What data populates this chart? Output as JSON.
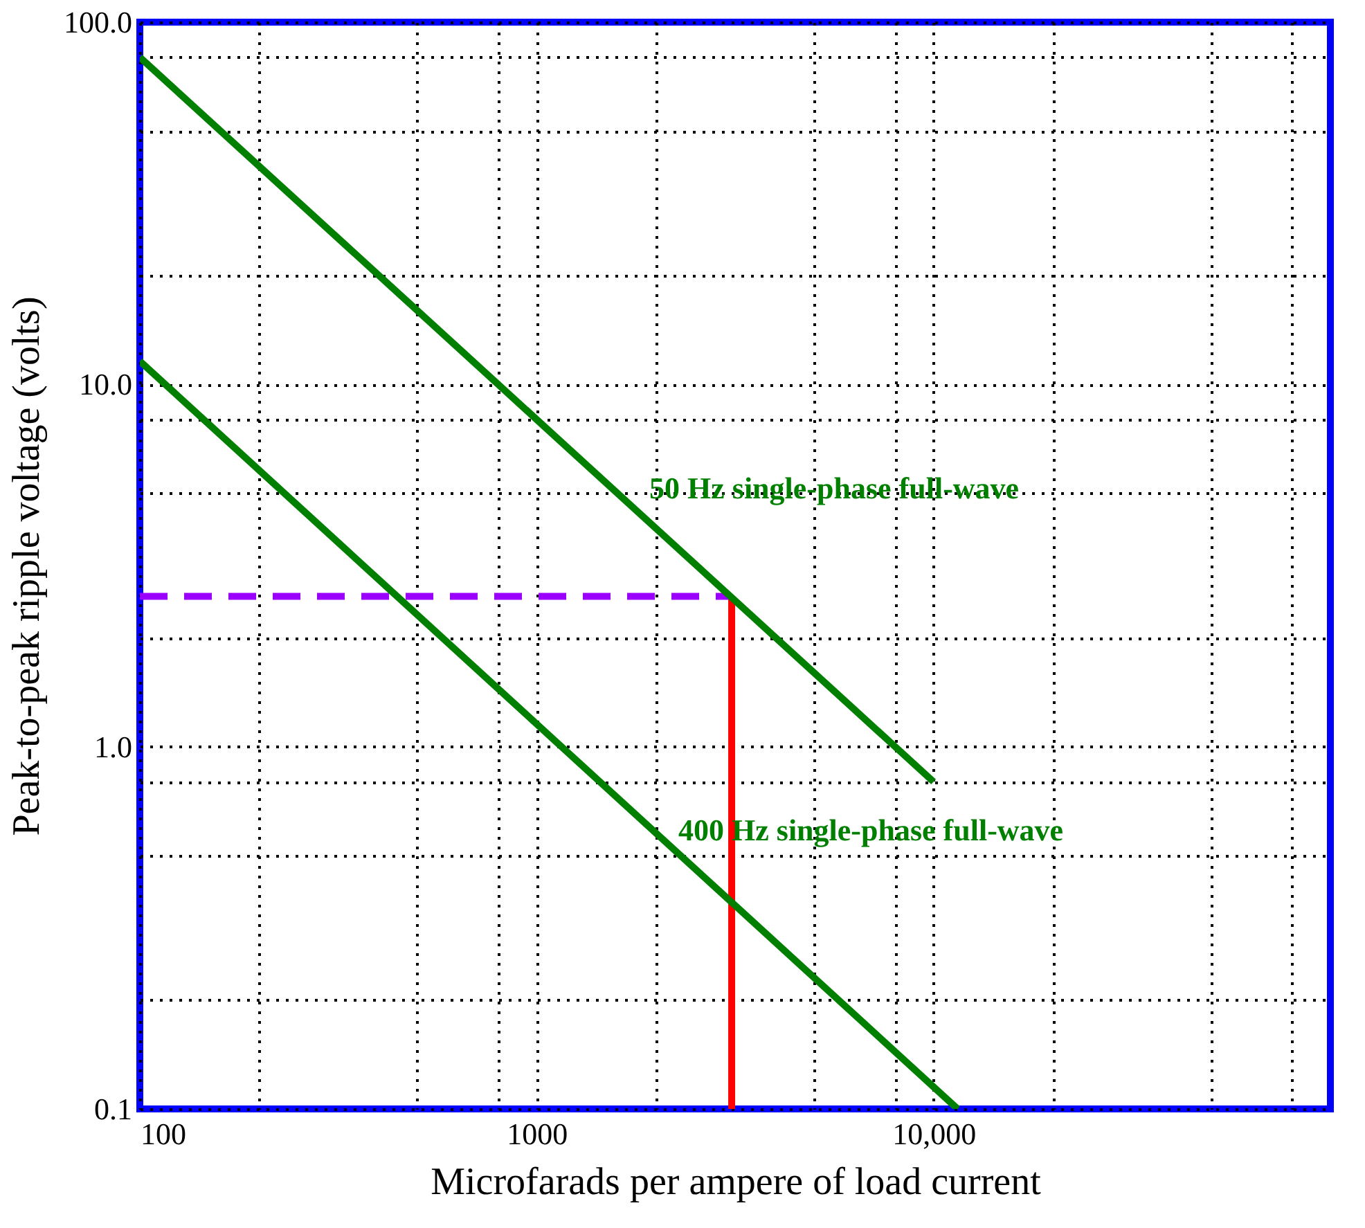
{
  "chart_data": {
    "type": "line",
    "xlabel": "Microfarads per ampere of load current",
    "ylabel": "Peak-to-peak ripple voltage  (volts)",
    "log": "xy",
    "grid": true,
    "legend": false,
    "marker": "none",
    "xlim": [
      100,
      100000
    ],
    "xticks": [
      100,
      {
        "value": 200,
        "label": null
      },
      {
        "value": 500,
        "label": null
      },
      {
        "value": 800,
        "label": null
      },
      1000,
      {
        "value": 2000,
        "label": null
      },
      {
        "value": 5000,
        "label": null
      },
      {
        "value": 8000,
        "label": null
      },
      {
        "value": 10000,
        "label": "10,000"
      },
      {
        "value": 20000,
        "label": null
      },
      {
        "value": 50000,
        "label": null
      },
      {
        "value": 80000,
        "label": null
      }
    ],
    "ylim": [
      0.1,
      100
    ],
    "yticks": [
      0.1,
      {
        "value": 0.2,
        "label": null
      },
      {
        "value": 0.5,
        "label": null
      },
      {
        "value": 0.8,
        "label": null
      },
      {
        "value": 1,
        "label": "1.0"
      },
      {
        "value": 2,
        "label": null
      },
      {
        "value": 5,
        "label": null
      },
      {
        "value": 8,
        "label": null
      },
      {
        "value": 10,
        "label": "10.0"
      },
      {
        "value": 20,
        "label": null
      },
      {
        "value": 50,
        "label": null
      },
      {
        "value": 80,
        "label": null
      },
      {
        "value": 100,
        "label": "100.0"
      }
    ],
    "series": [
      {
        "color": "#9b00ff",
        "line_style": "dashed",
        "x": [
          100,
          3100
        ],
        "values": [
          2.6,
          2.6
        ]
      },
      {
        "color": "#ff0000",
        "line_style": "solid",
        "x": [
          3100,
          3100
        ],
        "values": [
          0.1,
          2.6
        ]
      },
      {
        "color": "#007f00",
        "line_style": "solid",
        "x": [
          100,
          10000
        ],
        "values": [
          80,
          0.8
        ]
      },
      {
        "color": "#007f00",
        "line_style": "solid",
        "x": [
          100,
          11500
        ],
        "values": [
          11.6,
          0.1
        ]
      }
    ],
    "annotations": [
      "50 Hz single-phase full-wave",
      "400 Hz single-phase full-wave"
    ]
  }
}
